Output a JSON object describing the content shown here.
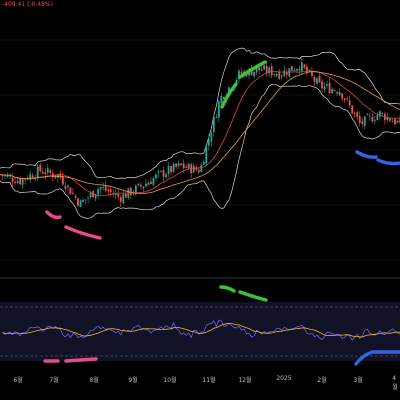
{
  "header": {
    "change_text": "-409.41 (-0.48%)"
  },
  "chart_data": [
    {
      "type": "candlestick",
      "overlays": [
        "bollinger-bands",
        "moving-averages"
      ],
      "price_series_shape": [
        {
          "x": 0,
          "y": 0.36
        },
        {
          "x": 0.05,
          "y": 0.33
        },
        {
          "x": 0.1,
          "y": 0.38
        },
        {
          "x": 0.15,
          "y": 0.35
        },
        {
          "x": 0.2,
          "y": 0.22
        },
        {
          "x": 0.25,
          "y": 0.3
        },
        {
          "x": 0.3,
          "y": 0.25
        },
        {
          "x": 0.35,
          "y": 0.3
        },
        {
          "x": 0.4,
          "y": 0.36
        },
        {
          "x": 0.45,
          "y": 0.4
        },
        {
          "x": 0.5,
          "y": 0.38
        },
        {
          "x": 0.55,
          "y": 0.72
        },
        {
          "x": 0.6,
          "y": 0.84
        },
        {
          "x": 0.65,
          "y": 0.86
        },
        {
          "x": 0.7,
          "y": 0.84
        },
        {
          "x": 0.75,
          "y": 0.88
        },
        {
          "x": 0.8,
          "y": 0.78
        },
        {
          "x": 0.85,
          "y": 0.76
        },
        {
          "x": 0.9,
          "y": 0.6
        },
        {
          "x": 0.95,
          "y": 0.65
        },
        {
          "x": 1.0,
          "y": 0.6
        }
      ],
      "annotations": [
        {
          "color": "#e64c8a",
          "label": "pink-divergence-price"
        },
        {
          "color": "#3cc33c",
          "label": "green-divergence-price"
        },
        {
          "color": "#3264e6",
          "label": "blue-divergence-price"
        }
      ]
    },
    {
      "type": "line",
      "panel": "oscillator",
      "series": [
        {
          "color": "#7b68ee"
        },
        {
          "color": "#e6b93c"
        }
      ],
      "annotations": [
        {
          "color": "#e64c8a",
          "label": "pink-divergence-osc"
        },
        {
          "color": "#3cc33c",
          "label": "green-divergence-osc"
        },
        {
          "color": "#3264e6",
          "label": "blue-divergence-osc"
        }
      ]
    }
  ],
  "x_axis": {
    "labels": [
      "6월",
      "7월",
      "8월",
      "9월",
      "10월",
      "11월",
      "12월",
      "2025",
      "2월",
      "3월",
      "4월"
    ]
  },
  "colors": {
    "up": "#26a69a",
    "down": "#ef5350",
    "band": "#d8d8d8",
    "grid": "#1e1e1e"
  }
}
